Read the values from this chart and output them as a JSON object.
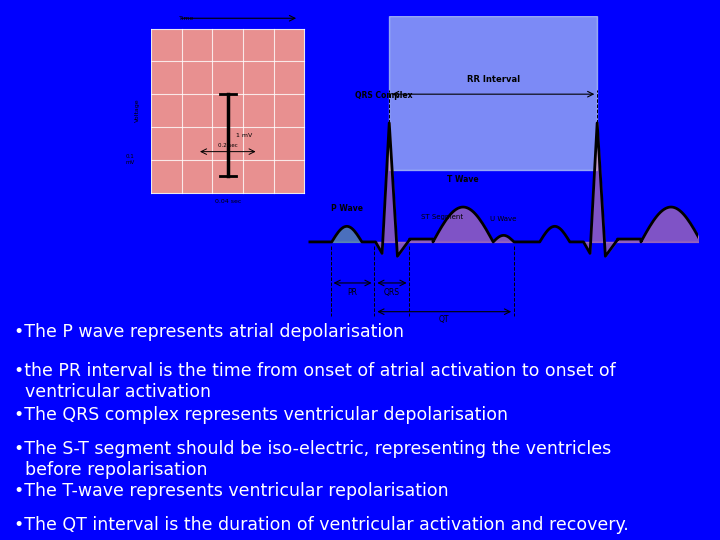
{
  "background_color": "#0000FF",
  "bullet_points": [
    "•The P wave represents atrial depolarisation",
    "•the PR interval is the time from onset of atrial activation to onset of ventricular activation",
    "•The QRS complex represents ventricular depolarisation",
    "•The S-T segment should be iso-electric, representing the ventricles before repolarisation",
    "•The T-wave represents ventricular repolarisation",
    "•The QT interval is the duration of ventricular activation and recovery."
  ],
  "text_color": "#FFFFFF",
  "font_size": 12.5,
  "ecg_bg": "#c8dde8",
  "grid_bg": "#e89090",
  "grid_line_color": "#ffffff",
  "ecg_line_color": "#000000",
  "p_shade_color": "#90c890",
  "qrs_shade_color": "#e8a0a0",
  "rr_shade_color": "#c8d8e8"
}
